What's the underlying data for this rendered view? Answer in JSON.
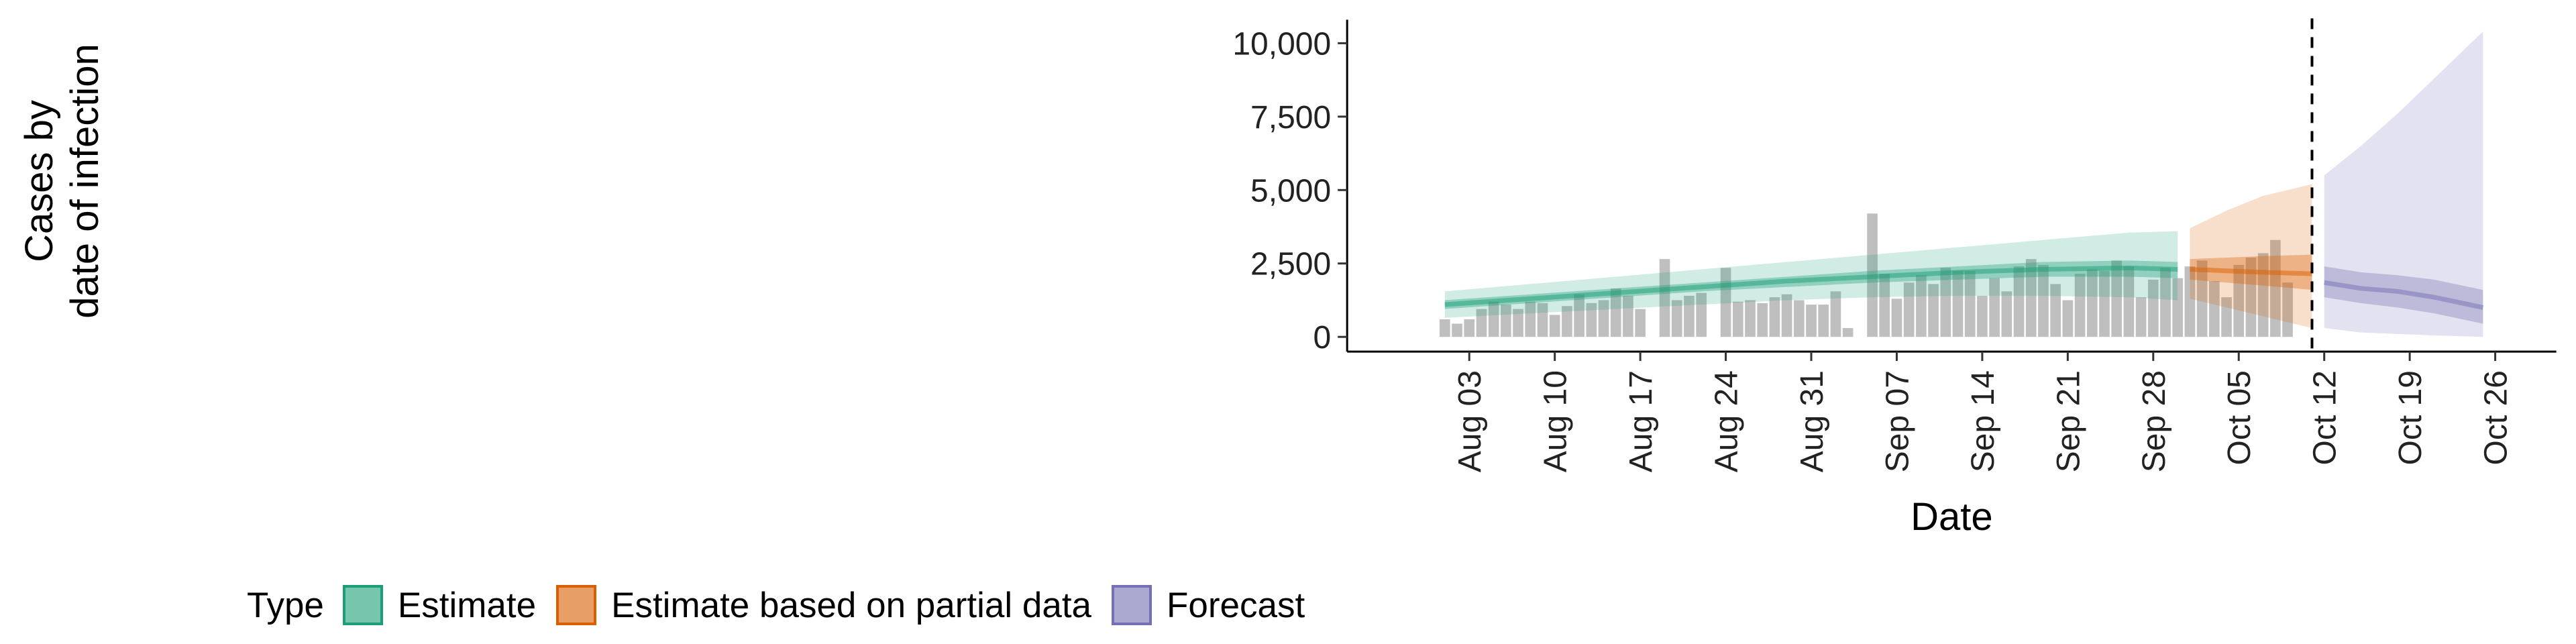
{
  "chart_data": {
    "type": "bar",
    "xlabel": "Date",
    "ylabel": [
      "Cases by",
      "date of infection"
    ],
    "ylim": [
      -500,
      10800
    ],
    "y_ticks": [
      0,
      2500,
      5000,
      7500,
      10000
    ],
    "y_tick_labels": [
      "0",
      "2,500",
      "5,000",
      "7,500",
      "10,000"
    ],
    "x_ticks": [
      "2020-08-03",
      "2020-08-10",
      "2020-08-17",
      "2020-08-24",
      "2020-08-31",
      "2020-09-07",
      "2020-09-14",
      "2020-09-21",
      "2020-09-28",
      "2020-10-05",
      "2020-10-12",
      "2020-10-19",
      "2020-10-26"
    ],
    "x_tick_labels": [
      "Aug 03",
      "Aug 10",
      "Aug 17",
      "Aug 24",
      "Aug 31",
      "Sep 07",
      "Sep 14",
      "Sep 21",
      "Sep 28",
      "Oct 05",
      "Oct 12",
      "Oct 19",
      "Oct 26"
    ],
    "xlim": [
      "2020-07-24",
      "2020-10-31"
    ],
    "vline_date": "2020-10-11",
    "reported_cases": {
      "start_date": "2020-08-01",
      "values": [
        600,
        450,
        600,
        950,
        1200,
        1100,
        950,
        1200,
        1150,
        750,
        1050,
        1450,
        1150,
        1250,
        1650,
        1400,
        950,
        0,
        2650,
        1250,
        1400,
        1500,
        0,
        2350,
        1200,
        1250,
        1150,
        1350,
        1450,
        1250,
        1100,
        1100,
        1550,
        300,
        0,
        4200,
        2150,
        1300,
        1850,
        2100,
        1800,
        2350,
        2250,
        2250,
        1400,
        2000,
        1550,
        2400,
        2650,
        2450,
        1800,
        1250,
        2150,
        2300,
        2250,
        2600,
        2400,
        1350,
        1950,
        2350,
        2000,
        2400,
        2600,
        1900,
        1350,
        2450,
        2700,
        2850,
        3300,
        1850
      ]
    },
    "series": [
      {
        "name": "Estimate",
        "color": "#1b9e77",
        "dates": [
          "2020-08-01",
          "2020-08-08",
          "2020-08-15",
          "2020-08-22",
          "2020-08-29",
          "2020-09-05",
          "2020-09-12",
          "2020-09-19",
          "2020-09-26",
          "2020-09-30"
        ],
        "median": [
          1100,
          1300,
          1500,
          1700,
          1900,
          2050,
          2200,
          2300,
          2350,
          2300
        ],
        "inner_lower": [
          950,
          1150,
          1350,
          1550,
          1700,
          1850,
          1950,
          2050,
          2050,
          2000
        ],
        "inner_upper": [
          1250,
          1450,
          1650,
          1850,
          2050,
          2250,
          2400,
          2550,
          2600,
          2550
        ],
        "outer_lower": [
          650,
          800,
          950,
          1100,
          1250,
          1350,
          1400,
          1400,
          1350,
          1250
        ],
        "outer_upper": [
          1550,
          1800,
          2050,
          2300,
          2550,
          2800,
          3050,
          3300,
          3550,
          3600
        ]
      },
      {
        "name": "Estimate based on partial data",
        "color": "#d95f02",
        "dates": [
          "2020-10-01",
          "2020-10-04",
          "2020-10-07",
          "2020-10-11"
        ],
        "median": [
          2300,
          2250,
          2200,
          2150
        ],
        "inner_lower": [
          1950,
          1850,
          1750,
          1600
        ],
        "inner_upper": [
          2650,
          2700,
          2750,
          2800
        ],
        "outer_lower": [
          1300,
          1000,
          700,
          300
        ],
        "outer_upper": [
          3700,
          4300,
          4800,
          5200
        ]
      },
      {
        "name": "Forecast",
        "color": "#7570b3",
        "dates": [
          "2020-10-12",
          "2020-10-15",
          "2020-10-18",
          "2020-10-21",
          "2020-10-25"
        ],
        "median": [
          1850,
          1650,
          1550,
          1350,
          1000
        ],
        "inner_lower": [
          1350,
          1150,
          1000,
          800,
          450
        ],
        "inner_upper": [
          2400,
          2200,
          2100,
          1950,
          1600
        ],
        "outer_lower": [
          300,
          150,
          100,
          50,
          0
        ],
        "outer_upper": [
          5500,
          6500,
          7600,
          8800,
          10400
        ]
      }
    ],
    "legend": {
      "title": "Type",
      "position": "bottom",
      "items": [
        "Estimate",
        "Estimate based on partial data",
        "Forecast"
      ]
    }
  }
}
